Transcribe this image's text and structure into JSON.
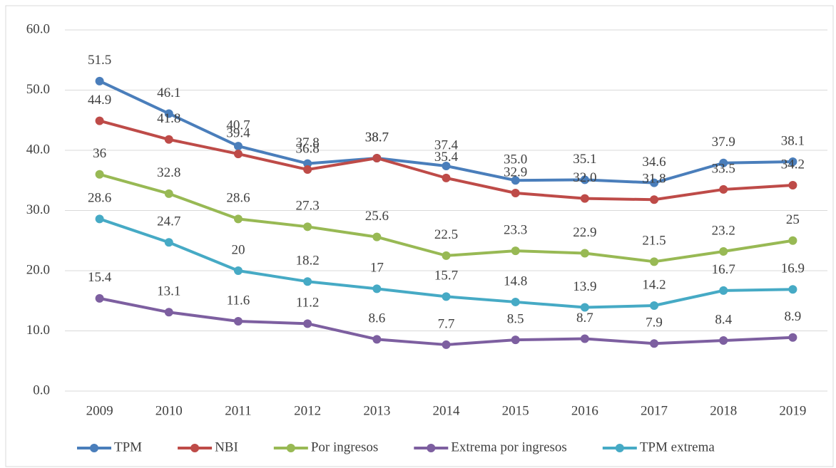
{
  "chart_data": {
    "type": "line",
    "categories": [
      "2009",
      "2010",
      "2011",
      "2012",
      "2013",
      "2014",
      "2015",
      "2016",
      "2017",
      "2018",
      "2019"
    ],
    "series": [
      {
        "name": "TPM",
        "color": "#4a7ebb",
        "values": [
          51.5,
          46.1,
          40.7,
          37.8,
          38.7,
          37.4,
          35.0,
          35.1,
          34.6,
          37.9,
          38.1
        ],
        "value_labels": [
          "51.5",
          "46.1",
          "40.7",
          "37.8",
          "38.7",
          "37.4",
          "35.0",
          "35.1",
          "34.6",
          "37.9",
          "38.1"
        ]
      },
      {
        "name": "NBI",
        "color": "#be4b48",
        "values": [
          44.9,
          41.8,
          39.4,
          36.8,
          38.7,
          35.4,
          32.9,
          32.0,
          31.8,
          33.5,
          34.2
        ],
        "value_labels": [
          "44.9",
          "41.8",
          "39.4",
          "36.8",
          "38.7",
          "35.4",
          "32.9",
          "32.0",
          "31.8",
          "33.5",
          "34.2"
        ]
      },
      {
        "name": "Por ingresos",
        "color": "#98b954",
        "values": [
          36,
          32.8,
          28.6,
          27.3,
          25.6,
          22.5,
          23.3,
          22.9,
          21.5,
          23.2,
          25
        ]
      },
      {
        "name": "Extrema por ingresos",
        "color": "#7d5fa0",
        "values": [
          15.4,
          13.1,
          11.6,
          11.2,
          8.6,
          7.7,
          8.5,
          8.7,
          7.9,
          8.4,
          8.9
        ]
      },
      {
        "name": "TPM extrema",
        "color": "#46aac5",
        "values": [
          28.6,
          24.7,
          20,
          18.2,
          17,
          15.7,
          14.8,
          13.9,
          14.2,
          16.7,
          16.9
        ]
      }
    ],
    "ylim": [
      0,
      60
    ],
    "yticks": [
      {
        "value": 0,
        "label": "0.0"
      },
      {
        "value": 10,
        "label": "10.0"
      },
      {
        "value": 20,
        "label": "20.0"
      },
      {
        "value": 30,
        "label": "30.0"
      },
      {
        "value": 40,
        "label": "40.0"
      },
      {
        "value": 50,
        "label": "50.0"
      },
      {
        "value": 60,
        "label": "60.0"
      }
    ],
    "grid": true,
    "legend": "bottom"
  }
}
